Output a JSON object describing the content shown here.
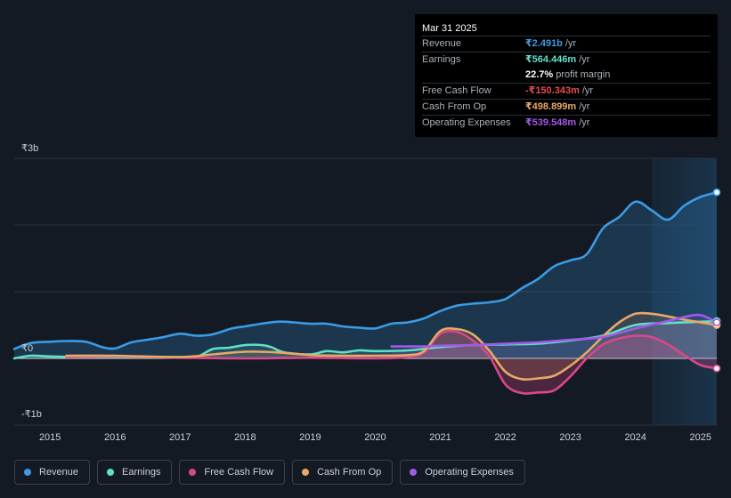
{
  "tooltip": {
    "date": "Mar 31 2025",
    "rows": [
      {
        "label": "Revenue",
        "value": "₹2.491b",
        "unit": "/yr",
        "color": "#3b9be6"
      },
      {
        "label": "Earnings",
        "value": "₹564.446m",
        "unit": "/yr",
        "color": "#5fe0c8"
      },
      {
        "label": "",
        "value": "22.7%",
        "unit": "profit margin",
        "color": "#ffffff"
      },
      {
        "label": "Free Cash Flow",
        "value": "-₹150.343m",
        "unit": "/yr",
        "color": "#e84b55"
      },
      {
        "label": "Cash From Op",
        "value": "₹498.899m",
        "unit": "/yr",
        "color": "#e8a866"
      },
      {
        "label": "Operating Expenses",
        "value": "₹539.548m",
        "unit": "/yr",
        "color": "#a259e8"
      }
    ]
  },
  "legend": [
    {
      "label": "Revenue",
      "color": "#3b9be6"
    },
    {
      "label": "Earnings",
      "color": "#5fe0c8"
    },
    {
      "label": "Free Cash Flow",
      "color": "#d9488a"
    },
    {
      "label": "Cash From Op",
      "color": "#e8a866"
    },
    {
      "label": "Operating Expenses",
      "color": "#a259e8"
    }
  ],
  "chart_data": {
    "type": "line",
    "ylim": [
      -1.0,
      3.0
    ],
    "xlim": [
      2014.45,
      2025.25
    ],
    "y_ticks": [
      {
        "value": 3,
        "label": "₹3b"
      },
      {
        "value": 0,
        "label": "₹0"
      },
      {
        "value": -1,
        "label": "-₹1b"
      }
    ],
    "x_ticks": [
      "2015",
      "2016",
      "2017",
      "2018",
      "2019",
      "2020",
      "2021",
      "2022",
      "2023",
      "2024",
      "2025"
    ],
    "highlight_from": 2024.25,
    "series": [
      {
        "name": "Revenue",
        "color": "#3b9be6",
        "fill": true,
        "points": [
          [
            2014.45,
            0.14
          ],
          [
            2014.7,
            0.23
          ],
          [
            2015.0,
            0.25
          ],
          [
            2015.25,
            0.26
          ],
          [
            2015.55,
            0.25
          ],
          [
            2015.8,
            0.17
          ],
          [
            2016.0,
            0.15
          ],
          [
            2016.25,
            0.24
          ],
          [
            2016.5,
            0.28
          ],
          [
            2016.75,
            0.32
          ],
          [
            2017.0,
            0.37
          ],
          [
            2017.25,
            0.34
          ],
          [
            2017.5,
            0.36
          ],
          [
            2017.8,
            0.45
          ],
          [
            2018.0,
            0.48
          ],
          [
            2018.25,
            0.52
          ],
          [
            2018.5,
            0.55
          ],
          [
            2018.75,
            0.54
          ],
          [
            2019.0,
            0.52
          ],
          [
            2019.25,
            0.52
          ],
          [
            2019.5,
            0.48
          ],
          [
            2019.75,
            0.46
          ],
          [
            2020.0,
            0.45
          ],
          [
            2020.25,
            0.52
          ],
          [
            2020.5,
            0.54
          ],
          [
            2020.75,
            0.6
          ],
          [
            2021.0,
            0.71
          ],
          [
            2021.25,
            0.79
          ],
          [
            2021.5,
            0.82
          ],
          [
            2021.75,
            0.84
          ],
          [
            2022.0,
            0.89
          ],
          [
            2022.25,
            1.05
          ],
          [
            2022.5,
            1.19
          ],
          [
            2022.75,
            1.38
          ],
          [
            2023.0,
            1.47
          ],
          [
            2023.25,
            1.56
          ],
          [
            2023.5,
            1.95
          ],
          [
            2023.75,
            2.12
          ],
          [
            2024.0,
            2.35
          ],
          [
            2024.25,
            2.22
          ],
          [
            2024.5,
            2.08
          ],
          [
            2024.75,
            2.29
          ],
          [
            2025.0,
            2.42
          ],
          [
            2025.25,
            2.49
          ]
        ]
      },
      {
        "name": "Earnings",
        "color": "#5fe0c8",
        "fill": true,
        "points": [
          [
            2014.45,
            0.0
          ],
          [
            2014.7,
            0.04
          ],
          [
            2015.0,
            0.03
          ],
          [
            2015.5,
            0.02
          ],
          [
            2016.0,
            0.02
          ],
          [
            2016.5,
            0.02
          ],
          [
            2017.0,
            0.02
          ],
          [
            2017.25,
            0.02
          ],
          [
            2017.5,
            0.14
          ],
          [
            2017.75,
            0.16
          ],
          [
            2018.0,
            0.2
          ],
          [
            2018.25,
            0.2
          ],
          [
            2018.4,
            0.17
          ],
          [
            2018.6,
            0.09
          ],
          [
            2019.0,
            0.06
          ],
          [
            2019.25,
            0.11
          ],
          [
            2019.5,
            0.09
          ],
          [
            2019.75,
            0.12
          ],
          [
            2020.0,
            0.11
          ],
          [
            2020.5,
            0.12
          ],
          [
            2021.0,
            0.17
          ],
          [
            2021.5,
            0.2
          ],
          [
            2022.0,
            0.21
          ],
          [
            2022.5,
            0.22
          ],
          [
            2023.0,
            0.27
          ],
          [
            2023.5,
            0.34
          ],
          [
            2024.0,
            0.5
          ],
          [
            2024.5,
            0.53
          ],
          [
            2025.0,
            0.55
          ],
          [
            2025.25,
            0.56
          ]
        ]
      },
      {
        "name": "Free Cash Flow",
        "color": "#d9488a",
        "fill": true,
        "points": [
          [
            2015.25,
            0.02
          ],
          [
            2016.0,
            0.03
          ],
          [
            2017.0,
            0.01
          ],
          [
            2018.0,
            0.0
          ],
          [
            2019.0,
            0.01
          ],
          [
            2020.0,
            0.0
          ],
          [
            2020.5,
            0.02
          ],
          [
            2020.75,
            0.09
          ],
          [
            2021.0,
            0.37
          ],
          [
            2021.25,
            0.4
          ],
          [
            2021.5,
            0.27
          ],
          [
            2021.75,
            0.04
          ],
          [
            2022.0,
            -0.39
          ],
          [
            2022.25,
            -0.52
          ],
          [
            2022.5,
            -0.51
          ],
          [
            2022.75,
            -0.48
          ],
          [
            2023.0,
            -0.27
          ],
          [
            2023.25,
            0.0
          ],
          [
            2023.5,
            0.21
          ],
          [
            2023.75,
            0.3
          ],
          [
            2024.0,
            0.34
          ],
          [
            2024.25,
            0.32
          ],
          [
            2024.5,
            0.21
          ],
          [
            2024.75,
            0.05
          ],
          [
            2025.0,
            -0.1
          ],
          [
            2025.25,
            -0.15
          ]
        ]
      },
      {
        "name": "Cash From Op",
        "color": "#e8a866",
        "fill": true,
        "points": [
          [
            2015.25,
            0.04
          ],
          [
            2016.0,
            0.04
          ],
          [
            2017.0,
            0.02
          ],
          [
            2017.5,
            0.06
          ],
          [
            2018.0,
            0.1
          ],
          [
            2018.5,
            0.09
          ],
          [
            2019.0,
            0.05
          ],
          [
            2019.5,
            0.04
          ],
          [
            2020.0,
            0.04
          ],
          [
            2020.5,
            0.05
          ],
          [
            2020.75,
            0.11
          ],
          [
            2021.0,
            0.41
          ],
          [
            2021.25,
            0.44
          ],
          [
            2021.5,
            0.36
          ],
          [
            2021.75,
            0.12
          ],
          [
            2022.0,
            -0.2
          ],
          [
            2022.25,
            -0.31
          ],
          [
            2022.5,
            -0.3
          ],
          [
            2022.75,
            -0.26
          ],
          [
            2023.0,
            -0.11
          ],
          [
            2023.25,
            0.09
          ],
          [
            2023.5,
            0.33
          ],
          [
            2023.75,
            0.54
          ],
          [
            2024.0,
            0.67
          ],
          [
            2024.25,
            0.67
          ],
          [
            2024.5,
            0.63
          ],
          [
            2024.75,
            0.58
          ],
          [
            2025.0,
            0.54
          ],
          [
            2025.25,
            0.5
          ]
        ]
      },
      {
        "name": "Operating Expenses",
        "color": "#a259e8",
        "fill": true,
        "points": [
          [
            2020.25,
            0.18
          ],
          [
            2020.75,
            0.18
          ],
          [
            2021.0,
            0.19
          ],
          [
            2021.5,
            0.2
          ],
          [
            2022.0,
            0.22
          ],
          [
            2022.5,
            0.24
          ],
          [
            2023.0,
            0.28
          ],
          [
            2023.5,
            0.32
          ],
          [
            2024.0,
            0.45
          ],
          [
            2024.5,
            0.56
          ],
          [
            2024.75,
            0.62
          ],
          [
            2025.0,
            0.65
          ],
          [
            2025.25,
            0.54
          ]
        ]
      }
    ]
  }
}
